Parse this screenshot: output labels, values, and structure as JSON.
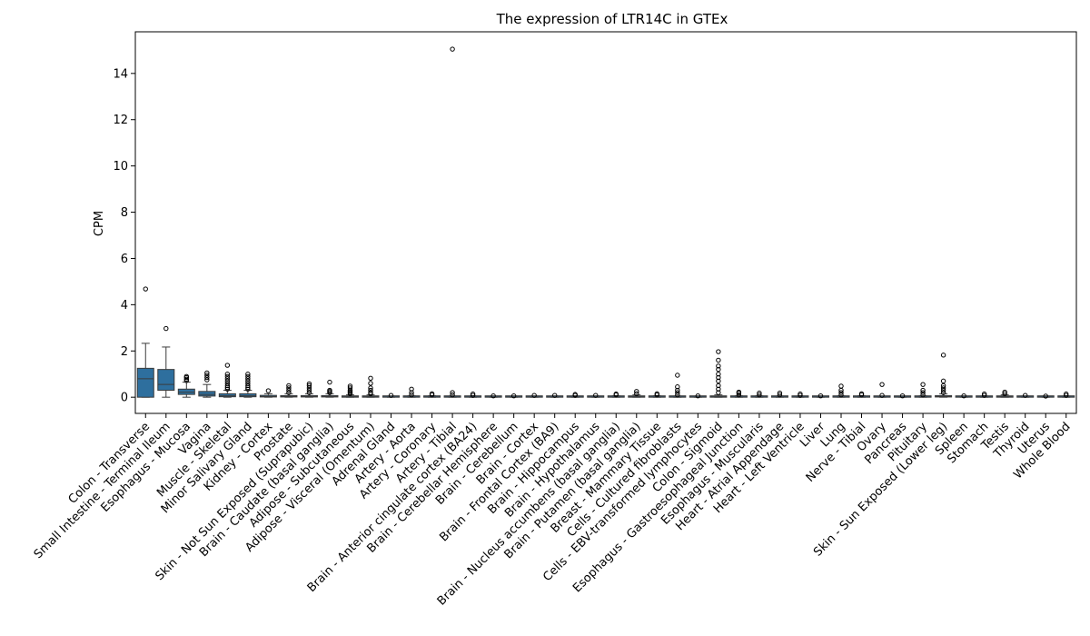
{
  "chart_data": {
    "type": "box",
    "title": "The expression of LTR14C in GTEx",
    "xlabel": "",
    "ylabel": "CPM",
    "ylim": [
      -0.7,
      15.8
    ],
    "yticks": [
      0,
      2,
      4,
      6,
      8,
      10,
      12,
      14
    ],
    "grid": false,
    "box_color": "#2e6f9e",
    "categories": [
      "Colon - Transverse",
      "Small Intestine - Terminal Ileum",
      "Esophagus - Mucosa",
      "Vagina",
      "Muscle - Skeletal",
      "Minor Salivary Gland",
      "Kidney - Cortex",
      "Prostate",
      "Skin - Not Sun Exposed (Suprapubic)",
      "Brain - Caudate (basal ganglia)",
      "Adipose - Subcutaneous",
      "Adipose - Visceral (Omentum)",
      "Adrenal Gland",
      "Artery - Aorta",
      "Artery - Coronary",
      "Artery - Tibial",
      "Brain - Anterior cingulate cortex (BA24)",
      "Brain - Cerebellar Hemisphere",
      "Brain - Cerebellum",
      "Brain - Cortex",
      "Brain - Frontal Cortex (BA9)",
      "Brain - Hippocampus",
      "Brain - Hypothalamus",
      "Brain - Nucleus accumbens (basal ganglia)",
      "Brain - Putamen (basal ganglia)",
      "Breast - Mammary Tissue",
      "Cells - Cultured fibroblasts",
      "Cells - EBV-transformed lymphocytes",
      "Colon - Sigmoid",
      "Esophagus - Gastroesophageal Junction",
      "Esophagus - Muscularis",
      "Heart - Atrial Appendage",
      "Heart - Left Ventricle",
      "Liver",
      "Lung",
      "Nerve - Tibial",
      "Ovary",
      "Pancreas",
      "Pituitary",
      "Skin - Sun Exposed (Lower leg)",
      "Spleen",
      "Stomach",
      "Testis",
      "Thyroid",
      "Uterus",
      "Whole Blood"
    ],
    "boxes": [
      {
        "whislo": 0.0,
        "q1": 0.0,
        "med": 0.8,
        "q3": 1.25,
        "whishi": 2.33,
        "fliers": [
          4.68
        ]
      },
      {
        "whislo": 0.0,
        "q1": 0.3,
        "med": 0.55,
        "q3": 1.2,
        "whishi": 2.17,
        "fliers": [
          2.97
        ]
      },
      {
        "whislo": 0.0,
        "q1": 0.12,
        "med": 0.22,
        "q3": 0.35,
        "whishi": 0.65,
        "fliers": [
          0.72,
          0.78,
          0.85,
          0.9
        ]
      },
      {
        "whislo": 0.0,
        "q1": 0.05,
        "med": 0.12,
        "q3": 0.25,
        "whishi": 0.55,
        "fliers": [
          0.75,
          0.85,
          0.95,
          1.05
        ]
      },
      {
        "whislo": 0.0,
        "q1": 0.02,
        "med": 0.06,
        "q3": 0.15,
        "whishi": 0.3,
        "fliers": [
          0.35,
          0.42,
          0.5,
          0.6,
          0.7,
          0.8,
          0.9,
          1.0,
          1.38
        ]
      },
      {
        "whislo": 0.0,
        "q1": 0.02,
        "med": 0.06,
        "q3": 0.15,
        "whishi": 0.3,
        "fliers": [
          0.35,
          0.42,
          0.5,
          0.6,
          0.7,
          0.8,
          0.9,
          1.0
        ]
      },
      {
        "whislo": 0.0,
        "q1": 0.01,
        "med": 0.03,
        "q3": 0.08,
        "whishi": 0.15,
        "fliers": [
          0.28
        ]
      },
      {
        "whislo": 0.0,
        "q1": 0.01,
        "med": 0.03,
        "q3": 0.07,
        "whishi": 0.15,
        "fliers": [
          0.2,
          0.3,
          0.4,
          0.5
        ]
      },
      {
        "whislo": 0.0,
        "q1": 0.01,
        "med": 0.03,
        "q3": 0.07,
        "whishi": 0.15,
        "fliers": [
          0.2,
          0.3,
          0.4,
          0.5,
          0.58
        ]
      },
      {
        "whislo": 0.0,
        "q1": 0.01,
        "med": 0.03,
        "q3": 0.07,
        "whishi": 0.15,
        "fliers": [
          0.2,
          0.25,
          0.3,
          0.65
        ]
      },
      {
        "whislo": 0.0,
        "q1": 0.0,
        "med": 0.02,
        "q3": 0.05,
        "whishi": 0.1,
        "fliers": [
          0.15,
          0.2,
          0.25,
          0.3,
          0.4,
          0.48
        ]
      },
      {
        "whislo": 0.0,
        "q1": 0.0,
        "med": 0.02,
        "q3": 0.05,
        "whishi": 0.1,
        "fliers": [
          0.15,
          0.2,
          0.3,
          0.4,
          0.6,
          0.82
        ]
      },
      {
        "whislo": 0.0,
        "q1": 0.0,
        "med": 0.01,
        "q3": 0.02,
        "whishi": 0.05,
        "fliers": [
          0.08
        ]
      },
      {
        "whislo": 0.0,
        "q1": 0.0,
        "med": 0.01,
        "q3": 0.03,
        "whishi": 0.06,
        "fliers": [
          0.1,
          0.2,
          0.35
        ]
      },
      {
        "whislo": 0.0,
        "q1": 0.0,
        "med": 0.01,
        "q3": 0.03,
        "whishi": 0.06,
        "fliers": [
          0.1,
          0.15
        ]
      },
      {
        "whislo": 0.0,
        "q1": 0.0,
        "med": 0.01,
        "q3": 0.02,
        "whishi": 0.05,
        "fliers": [
          0.1,
          0.2
        ],
        "extra_fliers": [
          15.05
        ]
      },
      {
        "whislo": 0.0,
        "q1": 0.0,
        "med": 0.01,
        "q3": 0.02,
        "whishi": 0.05,
        "fliers": [
          0.08,
          0.14
        ]
      },
      {
        "whislo": 0.0,
        "q1": 0.0,
        "med": 0.01,
        "q3": 0.02,
        "whishi": 0.04,
        "fliers": [
          0.06
        ]
      },
      {
        "whislo": 0.0,
        "q1": 0.0,
        "med": 0.01,
        "q3": 0.02,
        "whishi": 0.04,
        "fliers": [
          0.06
        ]
      },
      {
        "whislo": 0.0,
        "q1": 0.0,
        "med": 0.01,
        "q3": 0.02,
        "whishi": 0.05,
        "fliers": [
          0.08
        ]
      },
      {
        "whislo": 0.0,
        "q1": 0.0,
        "med": 0.01,
        "q3": 0.02,
        "whishi": 0.05,
        "fliers": [
          0.08
        ]
      },
      {
        "whislo": 0.0,
        "q1": 0.0,
        "med": 0.01,
        "q3": 0.02,
        "whishi": 0.05,
        "fliers": [
          0.08,
          0.12
        ]
      },
      {
        "whislo": 0.0,
        "q1": 0.0,
        "med": 0.01,
        "q3": 0.02,
        "whishi": 0.05,
        "fliers": [
          0.08
        ]
      },
      {
        "whislo": 0.0,
        "q1": 0.0,
        "med": 0.01,
        "q3": 0.03,
        "whishi": 0.06,
        "fliers": [
          0.1,
          0.14
        ]
      },
      {
        "whislo": 0.0,
        "q1": 0.0,
        "med": 0.02,
        "q3": 0.05,
        "whishi": 0.1,
        "fliers": [
          0.15,
          0.25
        ]
      },
      {
        "whislo": 0.0,
        "q1": 0.0,
        "med": 0.01,
        "q3": 0.03,
        "whishi": 0.06,
        "fliers": [
          0.1,
          0.15
        ]
      },
      {
        "whislo": 0.0,
        "q1": 0.0,
        "med": 0.01,
        "q3": 0.02,
        "whishi": 0.05,
        "fliers": [
          0.1,
          0.2,
          0.3,
          0.45,
          0.95
        ]
      },
      {
        "whislo": 0.0,
        "q1": 0.0,
        "med": 0.01,
        "q3": 0.02,
        "whishi": 0.04,
        "fliers": [
          0.06
        ]
      },
      {
        "whislo": 0.0,
        "q1": 0.0,
        "med": 0.02,
        "q3": 0.05,
        "whishi": 0.1,
        "fliers": [
          0.2,
          0.35,
          0.5,
          0.7,
          0.85,
          1.0,
          1.2,
          1.35,
          1.6,
          1.97
        ]
      },
      {
        "whislo": 0.0,
        "q1": 0.0,
        "med": 0.01,
        "q3": 0.03,
        "whishi": 0.06,
        "fliers": [
          0.1,
          0.18,
          0.22
        ]
      },
      {
        "whislo": 0.0,
        "q1": 0.0,
        "med": 0.01,
        "q3": 0.03,
        "whishi": 0.06,
        "fliers": [
          0.1,
          0.18
        ]
      },
      {
        "whislo": 0.0,
        "q1": 0.0,
        "med": 0.01,
        "q3": 0.02,
        "whishi": 0.05,
        "fliers": [
          0.1,
          0.18
        ]
      },
      {
        "whislo": 0.0,
        "q1": 0.0,
        "med": 0.01,
        "q3": 0.02,
        "whishi": 0.05,
        "fliers": [
          0.08,
          0.14
        ]
      },
      {
        "whislo": 0.0,
        "q1": 0.0,
        "med": 0.01,
        "q3": 0.02,
        "whishi": 0.04,
        "fliers": [
          0.06
        ]
      },
      {
        "whislo": 0.0,
        "q1": 0.0,
        "med": 0.01,
        "q3": 0.03,
        "whishi": 0.06,
        "fliers": [
          0.1,
          0.2,
          0.3,
          0.48
        ]
      },
      {
        "whislo": 0.0,
        "q1": 0.0,
        "med": 0.01,
        "q3": 0.03,
        "whishi": 0.06,
        "fliers": [
          0.1,
          0.15
        ]
      },
      {
        "whislo": 0.0,
        "q1": 0.0,
        "med": 0.01,
        "q3": 0.02,
        "whishi": 0.04,
        "fliers": [
          0.08,
          0.55
        ]
      },
      {
        "whislo": 0.0,
        "q1": 0.0,
        "med": 0.01,
        "q3": 0.02,
        "whishi": 0.04,
        "fliers": [
          0.06
        ]
      },
      {
        "whislo": 0.0,
        "q1": 0.0,
        "med": 0.01,
        "q3": 0.03,
        "whishi": 0.06,
        "fliers": [
          0.1,
          0.2,
          0.3,
          0.55
        ]
      },
      {
        "whislo": 0.0,
        "q1": 0.01,
        "med": 0.03,
        "q3": 0.07,
        "whishi": 0.15,
        "fliers": [
          0.2,
          0.3,
          0.4,
          0.5,
          0.7,
          1.82
        ]
      },
      {
        "whislo": 0.0,
        "q1": 0.0,
        "med": 0.01,
        "q3": 0.02,
        "whishi": 0.04,
        "fliers": [
          0.06
        ]
      },
      {
        "whislo": 0.0,
        "q1": 0.0,
        "med": 0.01,
        "q3": 0.02,
        "whishi": 0.05,
        "fliers": [
          0.08,
          0.14
        ]
      },
      {
        "whislo": 0.0,
        "q1": 0.0,
        "med": 0.02,
        "q3": 0.05,
        "whishi": 0.1,
        "fliers": [
          0.15,
          0.22
        ]
      },
      {
        "whislo": 0.0,
        "q1": 0.0,
        "med": 0.01,
        "q3": 0.02,
        "whishi": 0.05,
        "fliers": [
          0.08
        ]
      },
      {
        "whislo": 0.0,
        "q1": 0.0,
        "med": 0.01,
        "q3": 0.02,
        "whishi": 0.03,
        "fliers": [
          0.05
        ]
      },
      {
        "whislo": 0.0,
        "q1": 0.0,
        "med": 0.01,
        "q3": 0.02,
        "whishi": 0.05,
        "fliers": [
          0.08,
          0.14
        ]
      }
    ]
  }
}
